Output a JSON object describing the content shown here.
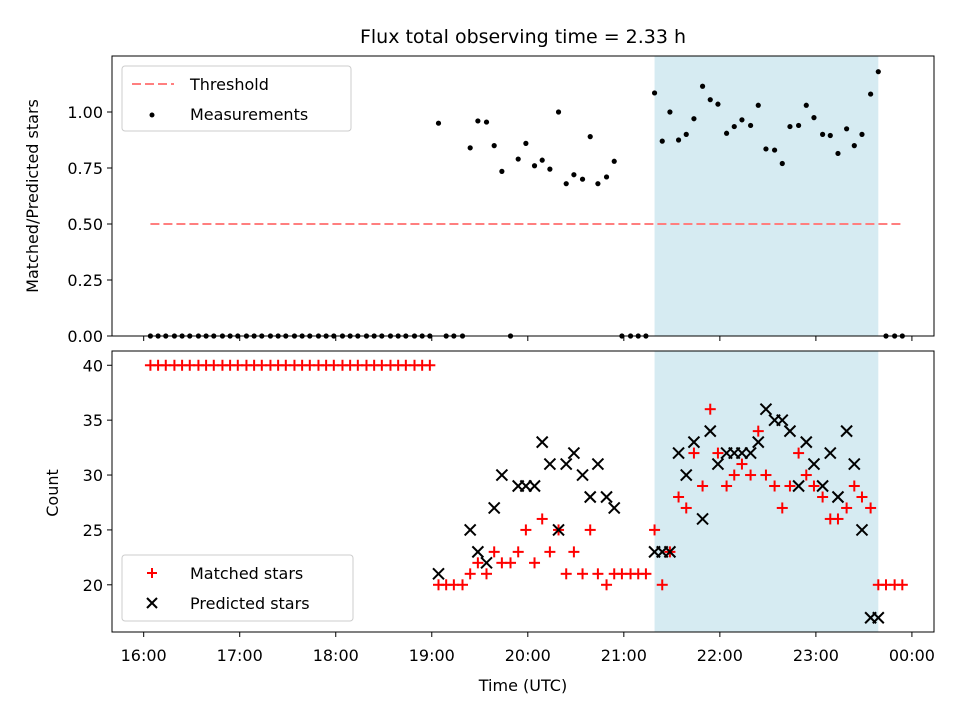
{
  "chart_data": {
    "title": "Flux total observing time = 2.33 h",
    "xlabel": "Time (UTC)",
    "x_unit": "hours since 16:00 UTC",
    "xlim": [
      -0.33,
      8.23
    ],
    "x_ticks": [
      {
        "value": 0,
        "label": "16:00"
      },
      {
        "value": 1,
        "label": "17:00"
      },
      {
        "value": 2,
        "label": "18:00"
      },
      {
        "value": 3,
        "label": "19:00"
      },
      {
        "value": 4,
        "label": "20:00"
      },
      {
        "value": 5,
        "label": "21:00"
      },
      {
        "value": 6,
        "label": "22:00"
      },
      {
        "value": 7,
        "label": "23:00"
      },
      {
        "value": 8,
        "label": "00:00"
      }
    ],
    "shaded_interval": [
      5.32,
      7.65
    ],
    "top": {
      "type": "scatter",
      "ylabel": "Matched/Predicted stars",
      "ylim": [
        0,
        1.25
      ],
      "y_ticks": [
        {
          "value": 0,
          "label": "0.00"
        },
        {
          "value": 0.25,
          "label": "0.25"
        },
        {
          "value": 0.5,
          "label": "0.50"
        },
        {
          "value": 0.75,
          "label": "0.75"
        },
        {
          "value": 1.0,
          "label": "1.00"
        }
      ],
      "threshold": {
        "name": "Threshold",
        "value": 0.5,
        "x_range": [
          0.07,
          7.92
        ],
        "color": "#ff7f7f"
      },
      "measurements": {
        "name": "Measurements",
        "color": "#000000",
        "x": [
          0.07,
          0.15,
          0.23,
          0.32,
          0.4,
          0.48,
          0.57,
          0.65,
          0.73,
          0.82,
          0.9,
          0.98,
          1.07,
          1.15,
          1.23,
          1.32,
          1.4,
          1.48,
          1.57,
          1.65,
          1.73,
          1.82,
          1.9,
          1.98,
          2.07,
          2.15,
          2.23,
          2.32,
          2.4,
          2.48,
          2.57,
          2.65,
          2.73,
          2.82,
          2.9,
          2.98,
          3.07,
          3.15,
          3.23,
          3.32,
          3.4,
          3.48,
          3.57,
          3.65,
          3.73,
          3.82,
          3.9,
          3.98,
          4.07,
          4.15,
          4.23,
          4.32,
          4.4,
          4.48,
          4.57,
          4.65,
          4.73,
          4.82,
          4.9,
          4.98,
          5.07,
          5.15,
          5.23,
          5.32,
          5.4,
          5.48,
          5.57,
          5.65,
          5.73,
          5.82,
          5.9,
          5.98,
          6.07,
          6.15,
          6.23,
          6.32,
          6.4,
          6.48,
          6.57,
          6.65,
          6.73,
          6.82,
          6.9,
          6.98,
          7.07,
          7.15,
          7.23,
          7.32,
          7.4,
          7.48,
          7.57,
          7.65,
          7.73,
          7.82,
          7.9
        ],
        "y": [
          0,
          0,
          0,
          0,
          0,
          0,
          0,
          0,
          0,
          0,
          0,
          0,
          0,
          0,
          0,
          0,
          0,
          0,
          0,
          0,
          0,
          0,
          0,
          0,
          0,
          0,
          0,
          0,
          0,
          0,
          0,
          0,
          0,
          0,
          0,
          0,
          0.95,
          0,
          0,
          0,
          0.84,
          0.96,
          0.955,
          0.85,
          0.735,
          0,
          0.79,
          0.86,
          0.76,
          0.785,
          0.745,
          1.0,
          0.68,
          0.72,
          0.7,
          0.89,
          0.68,
          0.71,
          0.78,
          0,
          0,
          0,
          0,
          1.085,
          0.87,
          1.0,
          0.875,
          0.9,
          0.97,
          1.115,
          1.055,
          1.035,
          0.905,
          0.935,
          0.965,
          0.94,
          1.03,
          0.835,
          0.83,
          0.77,
          0.935,
          0.94,
          1.03,
          0.975,
          0.9,
          0.895,
          0.815,
          0.925,
          0.85,
          0.9,
          1.08,
          1.18,
          0,
          0,
          0
        ]
      }
    },
    "bottom": {
      "type": "scatter",
      "ylabel": "Count",
      "ylim": [
        15.7,
        41.3
      ],
      "y_ticks": [
        {
          "value": 20,
          "label": "20"
        },
        {
          "value": 25,
          "label": "25"
        },
        {
          "value": 30,
          "label": "30"
        },
        {
          "value": 35,
          "label": "35"
        },
        {
          "value": 40,
          "label": "40"
        }
      ],
      "series": [
        {
          "name": "Matched stars",
          "marker": "+",
          "color": "#ff0000",
          "x": [
            0.07,
            0.15,
            0.23,
            0.32,
            0.4,
            0.48,
            0.57,
            0.65,
            0.73,
            0.82,
            0.9,
            0.98,
            1.07,
            1.15,
            1.23,
            1.32,
            1.4,
            1.48,
            1.57,
            1.65,
            1.73,
            1.82,
            1.9,
            1.98,
            2.07,
            2.15,
            2.23,
            2.32,
            2.4,
            2.48,
            2.57,
            2.65,
            2.73,
            2.82,
            2.9,
            2.98,
            3.07,
            3.15,
            3.23,
            3.32,
            3.4,
            3.48,
            3.57,
            3.65,
            3.73,
            3.82,
            3.9,
            3.98,
            4.07,
            4.15,
            4.23,
            4.32,
            4.4,
            4.48,
            4.57,
            4.65,
            4.73,
            4.82,
            4.9,
            4.98,
            5.07,
            5.15,
            5.23,
            5.32,
            5.4,
            5.48,
            5.57,
            5.65,
            5.73,
            5.82,
            5.9,
            5.98,
            6.07,
            6.15,
            6.23,
            6.32,
            6.4,
            6.48,
            6.57,
            6.65,
            6.73,
            6.82,
            6.9,
            6.98,
            7.07,
            7.15,
            7.23,
            7.32,
            7.4,
            7.48,
            7.57,
            7.65,
            7.73,
            7.82,
            7.9
          ],
          "values": [
            40,
            40,
            40,
            40,
            40,
            40,
            40,
            40,
            40,
            40,
            40,
            40,
            40,
            40,
            40,
            40,
            40,
            40,
            40,
            40,
            40,
            40,
            40,
            40,
            40,
            40,
            40,
            40,
            40,
            40,
            40,
            40,
            40,
            40,
            40,
            40,
            20,
            20,
            20,
            20,
            21,
            22,
            21,
            23,
            22,
            22,
            23,
            25,
            22,
            26,
            23,
            25,
            21,
            23,
            21,
            25,
            21,
            20,
            21,
            21,
            21,
            21,
            21,
            25,
            20,
            23,
            28,
            27,
            32,
            29,
            36,
            32,
            29,
            30,
            31,
            30,
            34,
            30,
            29,
            27,
            29,
            32,
            30,
            29,
            28,
            26,
            26,
            27,
            29,
            28,
            27,
            20,
            20,
            20,
            20
          ],
          "notes": "some points hidden behind predicted-star markers"
        },
        {
          "name": "Predicted stars",
          "marker": "x",
          "color": "#000000",
          "x": [
            3.07,
            3.4,
            3.48,
            3.57,
            3.65,
            3.73,
            3.9,
            3.98,
            4.07,
            4.15,
            4.23,
            4.32,
            4.4,
            4.48,
            4.57,
            4.65,
            4.73,
            4.82,
            4.9,
            5.32,
            5.4,
            5.48,
            5.57,
            5.65,
            5.73,
            5.82,
            5.9,
            5.98,
            6.07,
            6.15,
            6.23,
            6.32,
            6.4,
            6.48,
            6.57,
            6.65,
            6.73,
            6.82,
            6.9,
            6.98,
            7.07,
            7.15,
            7.23,
            7.32,
            7.4,
            7.48,
            7.57,
            7.65
          ],
          "values": [
            21,
            25,
            23,
            22,
            27,
            30,
            29,
            29,
            29,
            33,
            31,
            25,
            31,
            32,
            30,
            28,
            31,
            28,
            27,
            23,
            23,
            23,
            32,
            30,
            33,
            26,
            34,
            31,
            32,
            32,
            32,
            32,
            33,
            36,
            35,
            35,
            34,
            29,
            33,
            31,
            29,
            32,
            28,
            34,
            31,
            25,
            17,
            17
          ]
        }
      ]
    }
  }
}
